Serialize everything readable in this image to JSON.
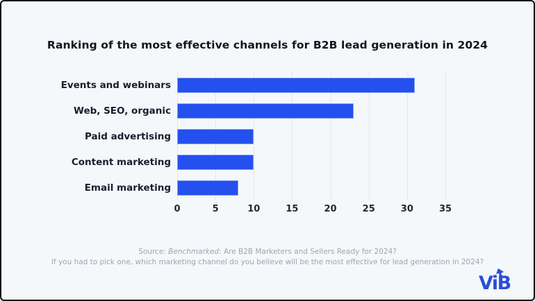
{
  "title": "Ranking of the most effective channels for B2B lead generation in 2024",
  "chart_data": {
    "type": "bar",
    "orientation": "horizontal",
    "title": "Ranking of the most effective channels for B2B lead generation in 2024",
    "categories": [
      "Events and webinars",
      "Web, SEO, organic",
      "Paid advertising",
      "Content marketing",
      "Email marketing"
    ],
    "values": [
      31,
      23,
      10,
      10,
      8
    ],
    "xlabel": "",
    "ylabel": "",
    "xlim": [
      0,
      35
    ],
    "xticks": [
      0,
      5,
      10,
      15,
      20,
      25,
      30,
      35
    ],
    "grid": true,
    "legend": false,
    "bar_color": "#2350ef"
  },
  "footer": {
    "source_prefix": "Source: ",
    "source_title": "Benchmarked",
    "source_suffix": ": Are B2B Marketers and Sellers Ready for 2024?",
    "question": "If you had to pick one, which marketing channel do you believe will be the most effective for lead generation in 2024?"
  },
  "logo": {
    "text": "ViB"
  },
  "colors": {
    "background": "#f4f8fb",
    "bar": "#2350ef",
    "gridline": "#e2e7ed",
    "title_text": "#15151f",
    "label_text": "#1c1c2e",
    "footer_text": "#a1a4ae",
    "logo_blue": "#2b4ed8",
    "border": "#0d0d16"
  }
}
